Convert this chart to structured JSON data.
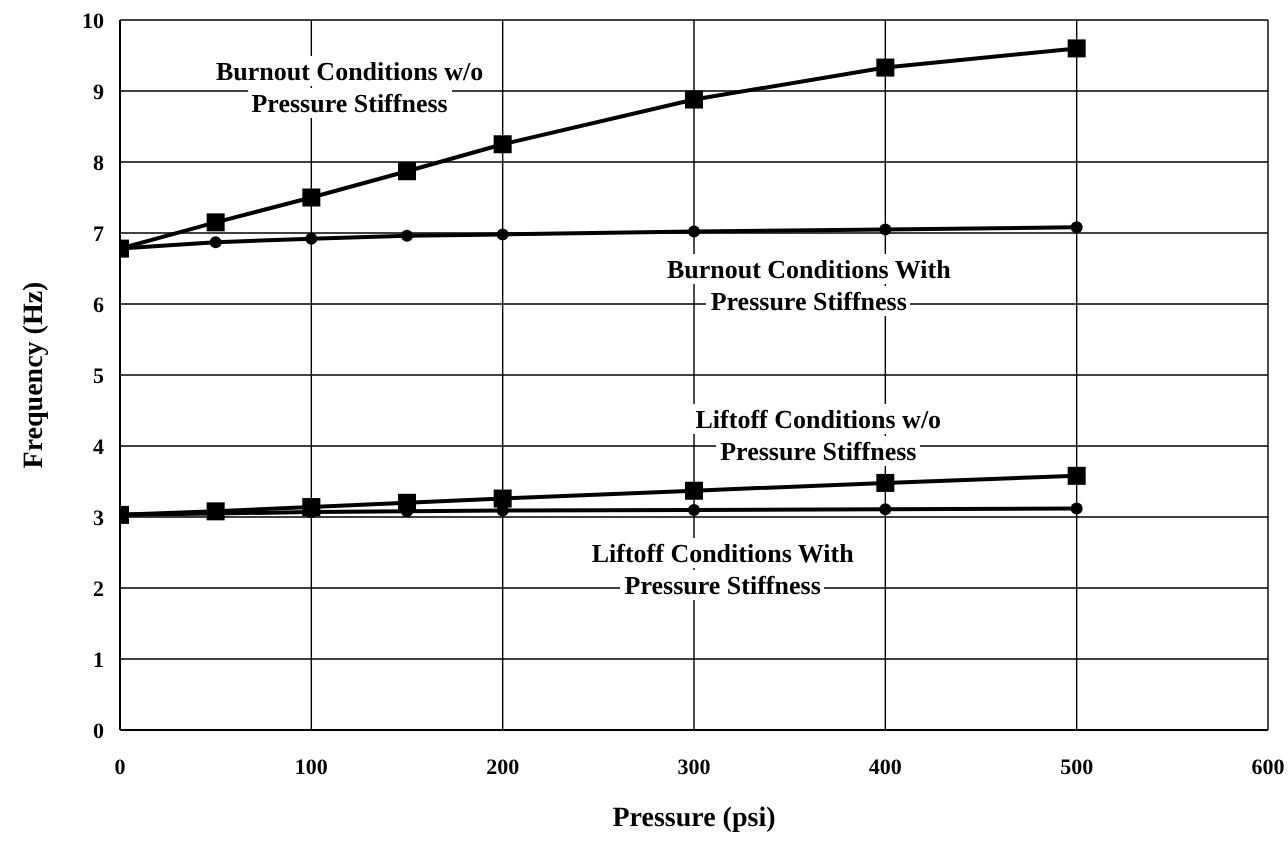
{
  "chart_data": {
    "type": "line",
    "xlabel": "Pressure (psi)",
    "ylabel": "Frequency (Hz)",
    "x": [
      0,
      50,
      100,
      150,
      200,
      300,
      400,
      500
    ],
    "series": [
      {
        "name": "Burnout Conditions w/o Pressure Stiffness",
        "color": "#000000",
        "marker": "square",
        "values": [
          6.78,
          7.15,
          7.5,
          7.87,
          8.25,
          8.88,
          9.33,
          9.6
        ]
      },
      {
        "name": "Burnout Conditions With Pressure Stiffness",
        "color": "#000000",
        "marker": "circle",
        "values": [
          6.78,
          6.87,
          6.92,
          6.96,
          6.98,
          7.02,
          7.05,
          7.08
        ]
      },
      {
        "name": "Liftoff Conditions w/o Pressure Stiffness",
        "color": "#000000",
        "marker": "square",
        "values": [
          3.03,
          3.08,
          3.14,
          3.2,
          3.26,
          3.37,
          3.48,
          3.58
        ]
      },
      {
        "name": "Liftoff Conditions With Pressure Stiffness",
        "color": "#000000",
        "marker": "circle",
        "values": [
          3.03,
          3.05,
          3.07,
          3.08,
          3.09,
          3.1,
          3.11,
          3.12
        ]
      }
    ],
    "xlim": [
      0,
      600
    ],
    "xticks": [
      0,
      100,
      200,
      300,
      400,
      500,
      600
    ],
    "ylim": [
      0,
      10
    ],
    "yticks": [
      0,
      1,
      2,
      3,
      4,
      5,
      6,
      7,
      8,
      9,
      10
    ],
    "grid": true,
    "legend": false,
    "line_style": "solid"
  }
}
